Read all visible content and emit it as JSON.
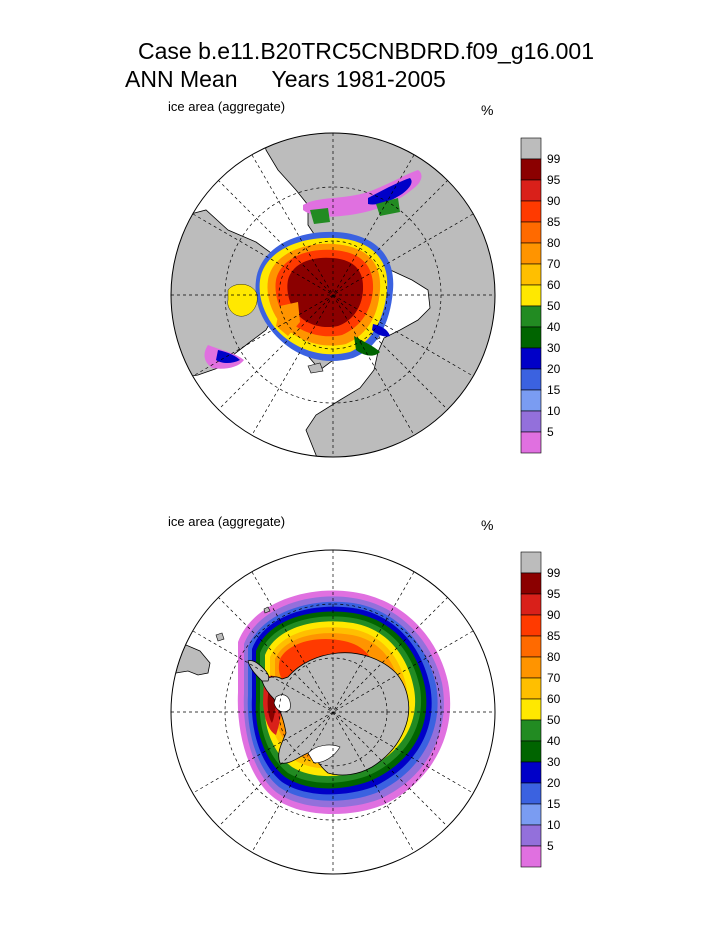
{
  "title": {
    "case_line": "Case b.e11.B20TRC5CNBDRD.f09_g16.001",
    "mean_label": "ANN Mean",
    "years_label": "Years 1981-2005"
  },
  "panels": [
    {
      "id": "nh",
      "hemisphere": "Northern",
      "variable": "ice area  (aggregate)",
      "units": "%"
    },
    {
      "id": "sh",
      "hemisphere": "Southern",
      "variable": "ice area  (aggregate)",
      "units": "%"
    }
  ],
  "colorbar": {
    "labels": [
      "99",
      "95",
      "90",
      "85",
      "80",
      "70",
      "60",
      "50",
      "40",
      "30",
      "20",
      "15",
      "10",
      "5"
    ],
    "colors": [
      "#bcbcbc",
      "#8b0000",
      "#d9201a",
      "#ff3a00",
      "#ff6a00",
      "#ff9400",
      "#ffbf00",
      "#ffe800",
      "#228b22",
      "#006400",
      "#0000c8",
      "#3b62e0",
      "#7a9cf2",
      "#9370db",
      "#e070e0"
    ]
  },
  "colors": {
    "land": "#bcbcbc",
    "ocean": "#ffffff"
  }
}
